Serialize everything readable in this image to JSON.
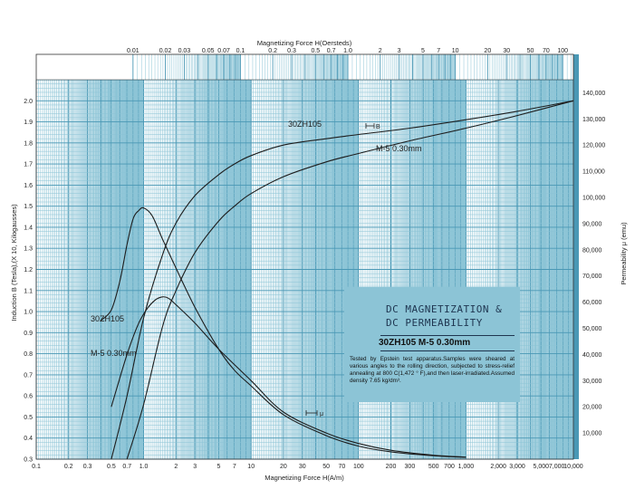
{
  "chart_data": {
    "type": "line",
    "title": "",
    "xlabel_bottom": "Magnetizing Force H(A/m)",
    "xlabel_top": "Magnetizing Force H(Oersteds)",
    "ylabel_left": "Induction B (Tesla),(X 10,   Kilogausses)",
    "ylabel_right": "Permeability μ (emu)",
    "xscale": "log",
    "xlim": [
      0.1,
      10000
    ],
    "ylim_left": [
      0.3,
      2.1
    ],
    "ylim_right": [
      0,
      145000
    ],
    "grid": true,
    "x_ticks_bottom": [
      {
        "v": 0.1,
        "label": "0.1"
      },
      {
        "v": 0.2,
        "label": "0.2"
      },
      {
        "v": 0.3,
        "label": "0.3"
      },
      {
        "v": 0.5,
        "label": "0.5"
      },
      {
        "v": 0.7,
        "label": "0.7"
      },
      {
        "v": 1,
        "label": "1.0"
      },
      {
        "v": 2,
        "label": "2"
      },
      {
        "v": 3,
        "label": "3"
      },
      {
        "v": 5,
        "label": "5"
      },
      {
        "v": 7,
        "label": "7"
      },
      {
        "v": 10,
        "label": "10"
      },
      {
        "v": 20,
        "label": "20"
      },
      {
        "v": 30,
        "label": "30"
      },
      {
        "v": 50,
        "label": "50"
      },
      {
        "v": 70,
        "label": "70"
      },
      {
        "v": 100,
        "label": "100"
      },
      {
        "v": 200,
        "label": "200"
      },
      {
        "v": 300,
        "label": "300"
      },
      {
        "v": 500,
        "label": "500"
      },
      {
        "v": 700,
        "label": "700"
      },
      {
        "v": 1000,
        "label": "1,000"
      },
      {
        "v": 2000,
        "label": "2,000"
      },
      {
        "v": 3000,
        "label": "3,000"
      },
      {
        "v": 5000,
        "label": "5,000"
      },
      {
        "v": 7000,
        "label": "7,000"
      },
      {
        "v": 10000,
        "label": "10,000"
      }
    ],
    "x_ticks_top_oersted": [
      {
        "v": 0.01,
        "label": "0.01"
      },
      {
        "v": 0.02,
        "label": "0.02"
      },
      {
        "v": 0.03,
        "label": "0.03"
      },
      {
        "v": 0.05,
        "label": "0.05"
      },
      {
        "v": 0.07,
        "label": "0.07"
      },
      {
        "v": 0.1,
        "label": "0.1"
      },
      {
        "v": 0.2,
        "label": "0.2"
      },
      {
        "v": 0.3,
        "label": "0.3"
      },
      {
        "v": 0.5,
        "label": "0.5"
      },
      {
        "v": 0.7,
        "label": "0.7"
      },
      {
        "v": 1,
        "label": "1.0"
      },
      {
        "v": 2,
        "label": "2"
      },
      {
        "v": 3,
        "label": "3"
      },
      {
        "v": 5,
        "label": "5"
      },
      {
        "v": 7,
        "label": "7"
      },
      {
        "v": 10,
        "label": "10"
      },
      {
        "v": 20,
        "label": "20"
      },
      {
        "v": 30,
        "label": "30"
      },
      {
        "v": 50,
        "label": "50"
      },
      {
        "v": 70,
        "label": "70"
      },
      {
        "v": 100,
        "label": "100"
      }
    ],
    "y_ticks_left": [
      "0.3",
      "0.4",
      "0.5",
      "0.6",
      "0.7",
      "0.8",
      "0.9",
      "1.0",
      "1.1",
      "1.2",
      "1.3",
      "1.4",
      "1.5",
      "1.6",
      "1.7",
      "1.8",
      "1.9",
      "2.0"
    ],
    "y_ticks_right": [
      "10,000",
      "20,000",
      "30,000",
      "40,000",
      "50,000",
      "60,000",
      "70,000",
      "80,000",
      "90,000",
      "100,000",
      "110,000",
      "120,000",
      "130,000",
      "140,000"
    ],
    "series": [
      {
        "name": "30ZH105",
        "quantity": "B",
        "axis": "left",
        "x": [
          0.5,
          0.7,
          1,
          1.5,
          2,
          3,
          5,
          7,
          10,
          20,
          50,
          100,
          300,
          1000,
          3000,
          10000
        ],
        "y": [
          0.3,
          0.6,
          0.97,
          1.27,
          1.42,
          1.55,
          1.65,
          1.7,
          1.74,
          1.79,
          1.82,
          1.84,
          1.87,
          1.91,
          1.95,
          2.0
        ]
      },
      {
        "name": "M-5  0.30mm",
        "quantity": "B",
        "axis": "left",
        "x": [
          0.7,
          1,
          1.5,
          2,
          3,
          5,
          7,
          10,
          20,
          50,
          100,
          300,
          1000,
          3000,
          10000
        ],
        "y": [
          0.3,
          0.56,
          0.93,
          1.1,
          1.28,
          1.43,
          1.5,
          1.56,
          1.64,
          1.71,
          1.75,
          1.81,
          1.87,
          1.93,
          2.0
        ]
      },
      {
        "name": "30ZH105",
        "quantity": "μ",
        "axis": "right",
        "x": [
          0.4,
          0.5,
          0.6,
          0.7,
          0.8,
          0.9,
          1,
          1.2,
          1.5,
          2,
          3,
          5,
          7,
          10,
          20,
          50,
          100,
          200,
          500,
          1000
        ],
        "y": [
          53000,
          57000,
          68000,
          82000,
          92000,
          95000,
          96000,
          93000,
          84000,
          73000,
          58000,
          42000,
          34000,
          28000,
          17000,
          9000,
          5000,
          2800,
          1300,
          700
        ]
      },
      {
        "name": "M-5  0.30mm",
        "quantity": "μ",
        "axis": "right",
        "x": [
          0.5,
          0.7,
          0.9,
          1.1,
          1.3,
          1.5,
          1.7,
          2,
          3,
          5,
          10,
          20,
          50,
          100,
          200,
          500,
          1000
        ],
        "y": [
          20000,
          40000,
          52000,
          58000,
          61000,
          62000,
          61500,
          59000,
          52000,
          42000,
          30000,
          18000,
          10000,
          6000,
          3400,
          1500,
          800
        ]
      }
    ],
    "curve_labels": [
      {
        "text": "30ZH105"
      },
      {
        "text": "M-5  0.30mm"
      },
      {
        "text": "30ZH105"
      },
      {
        "text": "M-5  0.30mm"
      }
    ],
    "annotations": [
      "B",
      "μ"
    ]
  },
  "infobox": {
    "title_line1": "DC MAGNETIZATION &",
    "title_line2": "DC PERMEABILITY",
    "subtitle": "30ZH105   M-5  0.30mm",
    "description": "Tested by Epstein test apparatus.Samples were sheared at various angles to the rolling direction, subjected to stress-relief annealing at 800 C(1,472 ° F),and then laser-irradiated.Assumed density 7.65 kg/dm³.",
    "color": "#8cc4d6"
  },
  "colors": {
    "grid_band": "#8cc4d6",
    "axis_band": "#4a98b5",
    "curve": "#1d1d1d"
  }
}
